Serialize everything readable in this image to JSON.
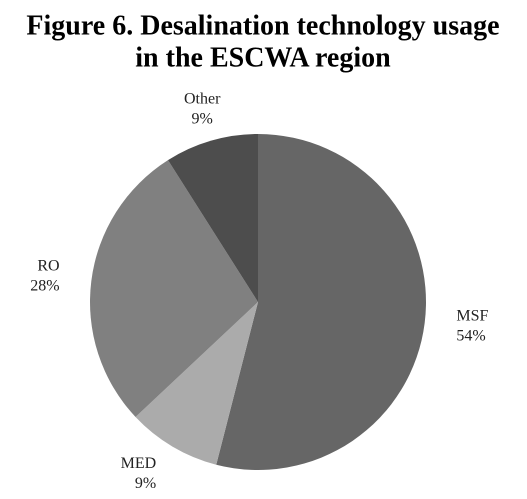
{
  "chart_data": {
    "type": "pie",
    "title": [
      "Figure 6.  Desalination technology usage",
      "in the ESCWA region"
    ],
    "categories": [
      "MSF",
      "MED",
      "RO",
      "Other"
    ],
    "values": [
      54,
      9,
      28,
      9
    ],
    "value_labels": [
      "54%",
      "9%",
      "28%",
      "9%"
    ],
    "colors": [
      "#666666",
      "#ababab",
      "#808080",
      "#4d4d4d"
    ]
  }
}
